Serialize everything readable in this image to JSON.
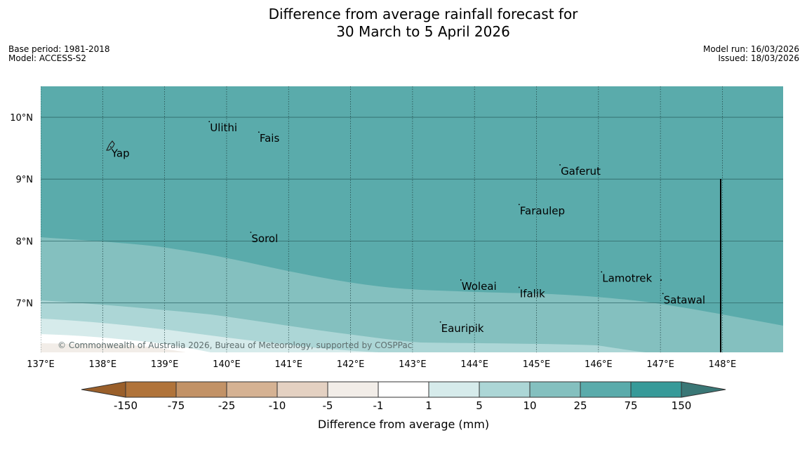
{
  "title_line1": "Difference from average rainfall forecast for",
  "title_line2": "30 March to 5 April 2026",
  "meta_left": {
    "base_period": "Base period: 1981-2018",
    "model": "Model: ACCESS-S2"
  },
  "meta_right": {
    "model_run": "Model run: 16/03/2026",
    "issued": "Issued: 18/03/2026"
  },
  "map": {
    "lon_range": [
      137.0,
      148.98
    ],
    "lat_range": [
      6.2,
      10.5
    ],
    "lon_ticks": [
      "137°E",
      "138°E",
      "139°E",
      "140°E",
      "141°E",
      "142°E",
      "143°E",
      "144°E",
      "145°E",
      "146°E",
      "147°E",
      "148°E"
    ],
    "lat_ticks": [
      "7°N",
      "8°N",
      "9°N",
      "10°N"
    ],
    "copyright": "© Commonwealth of Australia 2026, Bureau of Meteorology, supported by COSPPac",
    "places": [
      {
        "name": "Ulithi",
        "lon": 139.72,
        "lat": 9.93
      },
      {
        "name": "Fais",
        "lon": 140.52,
        "lat": 9.76
      },
      {
        "name": "Yap",
        "lon": 138.13,
        "lat": 9.52
      },
      {
        "name": "Gaferut",
        "lon": 145.38,
        "lat": 9.23
      },
      {
        "name": "Faraulep",
        "lon": 144.72,
        "lat": 8.59
      },
      {
        "name": "Sorol",
        "lon": 140.39,
        "lat": 8.14
      },
      {
        "name": "Lamotrek",
        "lon": 146.05,
        "lat": 7.5
      },
      {
        "name": "Woleai",
        "lon": 143.78,
        "lat": 7.37
      },
      {
        "name": "Ifalik",
        "lon": 144.72,
        "lat": 7.25
      },
      {
        "name": "Satawal",
        "lon": 147.04,
        "lat": 7.15
      },
      {
        "name": "Eauripik",
        "lon": 143.45,
        "lat": 6.69
      }
    ]
  },
  "colorbar": {
    "title": "Difference from average (mm)",
    "ticks": [
      "-150",
      "-75",
      "-25",
      "-10",
      "-5",
      "-1",
      "1",
      "5",
      "10",
      "25",
      "75",
      "150"
    ],
    "low_extend_color": "#9a5f2a",
    "high_extend_color": "#3a7776",
    "colors": [
      "#b0733a",
      "#c29266",
      "#d5b293",
      "#e4d1c2",
      "#f2ede8",
      "#ffffff",
      "#d6ebeb",
      "#acd6d6",
      "#84c0bf",
      "#5aabab",
      "#379a99"
    ]
  },
  "zone_colors": [
    "#5aabab",
    "#84c0bf",
    "#acd6d6",
    "#d6ebeb",
    "#f2ede8"
  ]
}
